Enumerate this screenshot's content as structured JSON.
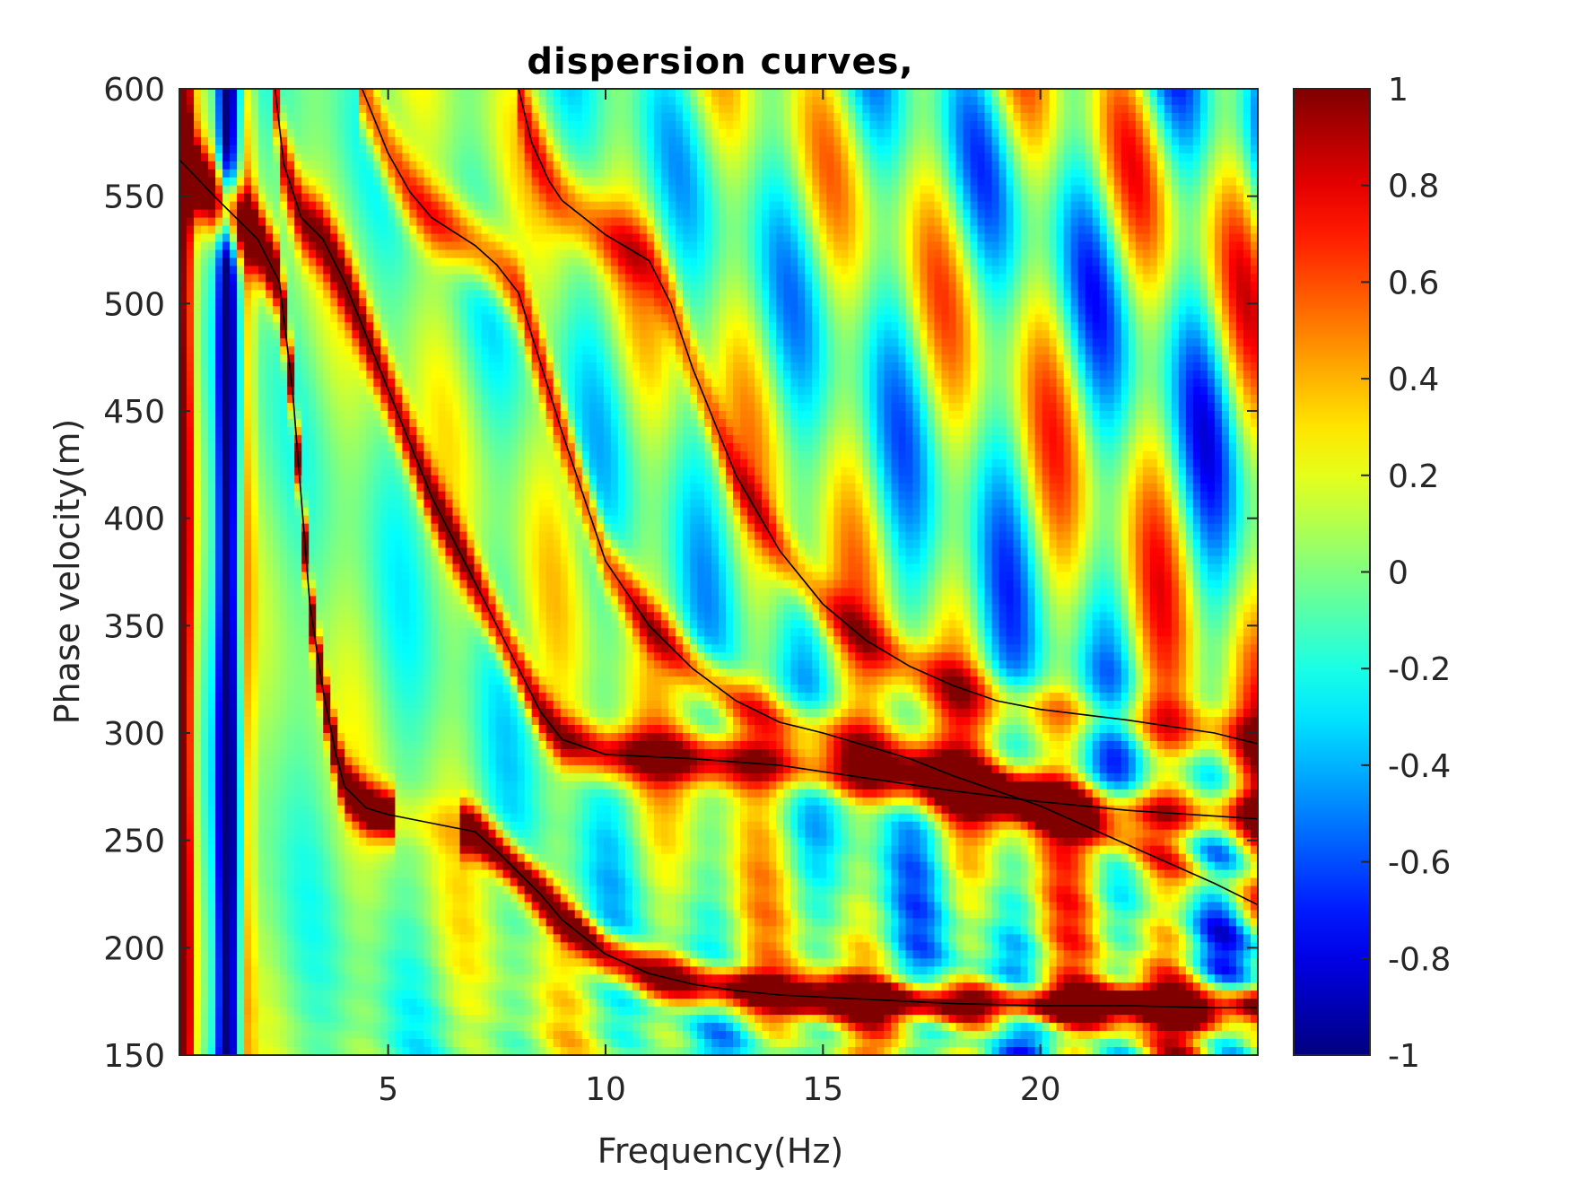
{
  "chart_data": {
    "type": "heatmap",
    "title": "dispersion curves,",
    "xlabel": "Frequency(Hz)",
    "ylabel": "Phase velocity(m)",
    "xlim": [
      0.2,
      25
    ],
    "ylim": [
      150,
      600
    ],
    "xticks": [
      5,
      10,
      15,
      20
    ],
    "yticks": [
      150,
      200,
      250,
      300,
      350,
      400,
      450,
      500,
      550,
      600
    ],
    "colorbar": {
      "colormap": "jet",
      "range": [
        -1,
        1
      ],
      "ticks": [
        "1",
        "0.8",
        "0.6",
        "0.4",
        "0.2",
        "0",
        "-0.2",
        "-0.4",
        "-0.6",
        "-0.8",
        "-1"
      ]
    },
    "grid": false,
    "series": [
      {
        "x": [
          0.2,
          1,
          2,
          2.5,
          2.8,
          3,
          3.2,
          3.5,
          3.8,
          4,
          4.5,
          5,
          6,
          7,
          7.5,
          8,
          8.5,
          9,
          10,
          11,
          12,
          13,
          14,
          16,
          18,
          20,
          22,
          24,
          25
        ],
        "y": [
          567,
          550,
          530,
          510,
          460,
          410,
          360,
          320,
          290,
          275,
          265,
          262,
          258,
          254,
          245,
          235,
          225,
          213,
          197,
          188,
          183,
          180,
          178,
          176,
          174,
          173,
          173,
          172,
          172
        ]
      },
      {
        "x": [
          2.4,
          2.6,
          3,
          3.5,
          4,
          5,
          6,
          7,
          7.5,
          8,
          8.5,
          9,
          10,
          12,
          14,
          16,
          18,
          20,
          22,
          25
        ],
        "y": [
          600,
          565,
          540,
          530,
          510,
          460,
          410,
          370,
          350,
          330,
          310,
          297,
          290,
          288,
          285,
          279,
          273,
          268,
          264,
          260
        ]
      },
      {
        "x": [
          4.4,
          4.8,
          5,
          5.5,
          6,
          7,
          7.5,
          8,
          9,
          10,
          11,
          12,
          13,
          14,
          15,
          16,
          17,
          18,
          20,
          22,
          24,
          25
        ],
        "y": [
          600,
          580,
          570,
          552,
          540,
          527,
          518,
          505,
          440,
          380,
          350,
          330,
          315,
          305,
          300,
          294,
          288,
          280,
          266,
          248,
          230,
          220
        ]
      },
      {
        "x": [
          8.0,
          8.3,
          8.7,
          9,
          10,
          11,
          11.5,
          12,
          13,
          14,
          15,
          16,
          17,
          18,
          19,
          20,
          22,
          24,
          25
        ],
        "y": [
          600,
          575,
          557,
          548,
          532,
          520,
          500,
          470,
          420,
          385,
          360,
          343,
          331,
          322,
          315,
          311,
          306,
          300,
          295
        ]
      }
    ]
  }
}
